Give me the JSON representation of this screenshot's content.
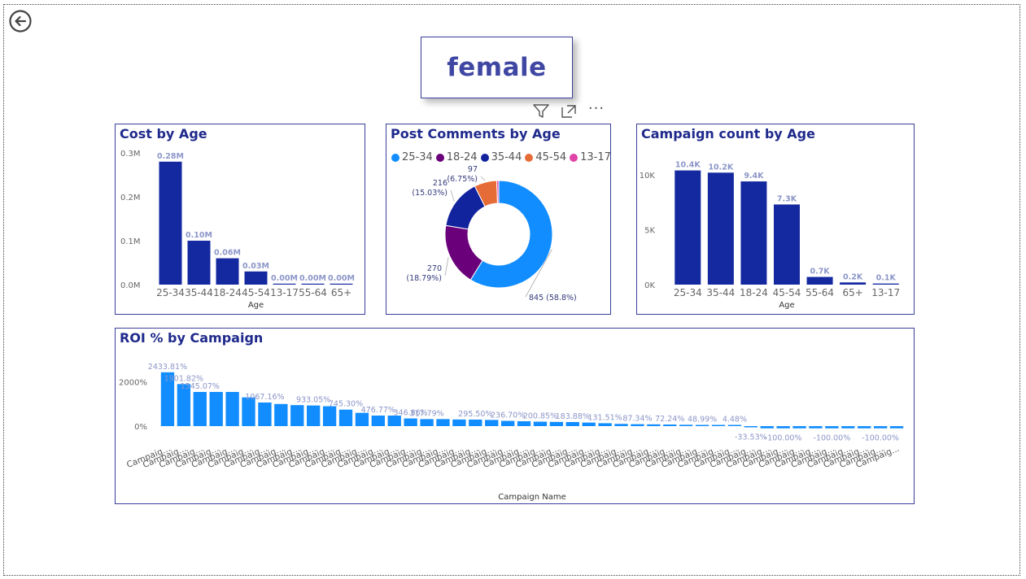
{
  "page": {
    "title": "female"
  },
  "colors": {
    "bar": "#1428a0",
    "roi_bar": "#118dff",
    "label": "#8c96c8",
    "title": "#1f2a8c"
  },
  "icons": {
    "back": "back-arrow-icon",
    "filter": "filter-icon",
    "focus": "focus-mode-icon",
    "more": "more-options-icon"
  },
  "toolbar": {
    "more_label": "···"
  },
  "chart_data": [
    {
      "type": "bar",
      "title": "Cost by Age",
      "xlabel": "Age",
      "ylabel": "",
      "categories": [
        "25-34",
        "35-44",
        "18-24",
        "45-54",
        "13-17",
        "55-64",
        "65+"
      ],
      "values": [
        0.28,
        0.1,
        0.06,
        0.03,
        0.0,
        0.0,
        0.0
      ],
      "data_labels": [
        "0.28M",
        "0.10M",
        "0.06M",
        "0.03M",
        "0.00M",
        "0.00M",
        "0.00M"
      ],
      "ylim": [
        0,
        0.3
      ],
      "yticks": [
        0,
        0.1,
        0.2,
        0.3
      ],
      "ytick_labels": [
        "0.0M",
        "0.1M",
        "0.2M",
        "0.3M"
      ],
      "grid": false
    },
    {
      "type": "pie",
      "title": "Post Comments by Age",
      "categories": [
        "25-34",
        "18-24",
        "35-44",
        "45-54",
        "13-17"
      ],
      "values": [
        845,
        270,
        216,
        97,
        9
      ],
      "data_labels": [
        "845 (58.8%)",
        "270 (18.79%)",
        "216 (15.03%)",
        "97 (6.75%)",
        ""
      ],
      "colors": [
        "#118dff",
        "#6b007b",
        "#12239e",
        "#e66c37",
        "#e044a7"
      ],
      "legend": "top-left",
      "donut": true
    },
    {
      "type": "bar",
      "title": "Campaign count by Age",
      "xlabel": "Age",
      "ylabel": "",
      "categories": [
        "25-34",
        "35-44",
        "18-24",
        "45-54",
        "55-64",
        "65+",
        "13-17"
      ],
      "values": [
        10400,
        10200,
        9400,
        7300,
        700,
        200,
        100
      ],
      "data_labels": [
        "10.4K",
        "10.2K",
        "9.4K",
        "7.3K",
        "0.7K",
        "0.2K",
        "0.1K"
      ],
      "ylim": [
        0,
        10000
      ],
      "yticks": [
        0,
        5000,
        10000
      ],
      "ytick_labels": [
        "0K",
        "5K",
        "10K"
      ],
      "grid": false
    },
    {
      "type": "bar",
      "title": "ROI % by Campaign",
      "xlabel": "Campaign Name",
      "ylabel": "",
      "category_label": "Campaig...",
      "values": [
        2433.81,
        1901.82,
        1545.07,
        1545.07,
        1545.07,
        1300,
        1067.16,
        1000,
        950,
        933.05,
        900,
        745.3,
        600,
        476.77,
        476.77,
        346.86,
        317.79,
        317.79,
        300,
        295.5,
        280,
        236.7,
        220,
        200.85,
        190,
        183.88,
        160,
        131.51,
        100,
        87.34,
        80,
        72.24,
        60,
        48.99,
        20,
        4.48,
        -33.53,
        -100,
        -100,
        -100,
        -100,
        -100,
        -100,
        -100,
        -100,
        -100
      ],
      "data_labels": [
        "2433.81%",
        "1901.82%",
        "1545.07%",
        "",
        "",
        "",
        "1067.16%",
        "",
        "",
        "933.05%",
        "",
        "745.30%",
        "",
        "476.77%",
        "",
        "346.86%",
        "317.79%",
        "",
        "",
        "295.50%",
        "",
        "236.70%",
        "",
        "200.85%",
        "",
        "183.88%",
        "",
        "131.51%",
        "",
        "87.34%",
        "",
        "72.24%",
        "",
        "48.99%",
        "",
        "4.48%",
        "-33.53%",
        "",
        "-100.00%",
        "",
        "",
        "-100.00%",
        "",
        "",
        "-100.00%",
        ""
      ],
      "ylim": [
        -100,
        2500
      ],
      "yticks": [
        0,
        2000
      ],
      "ytick_labels": [
        "0%",
        "2000%"
      ],
      "grid": false
    }
  ]
}
